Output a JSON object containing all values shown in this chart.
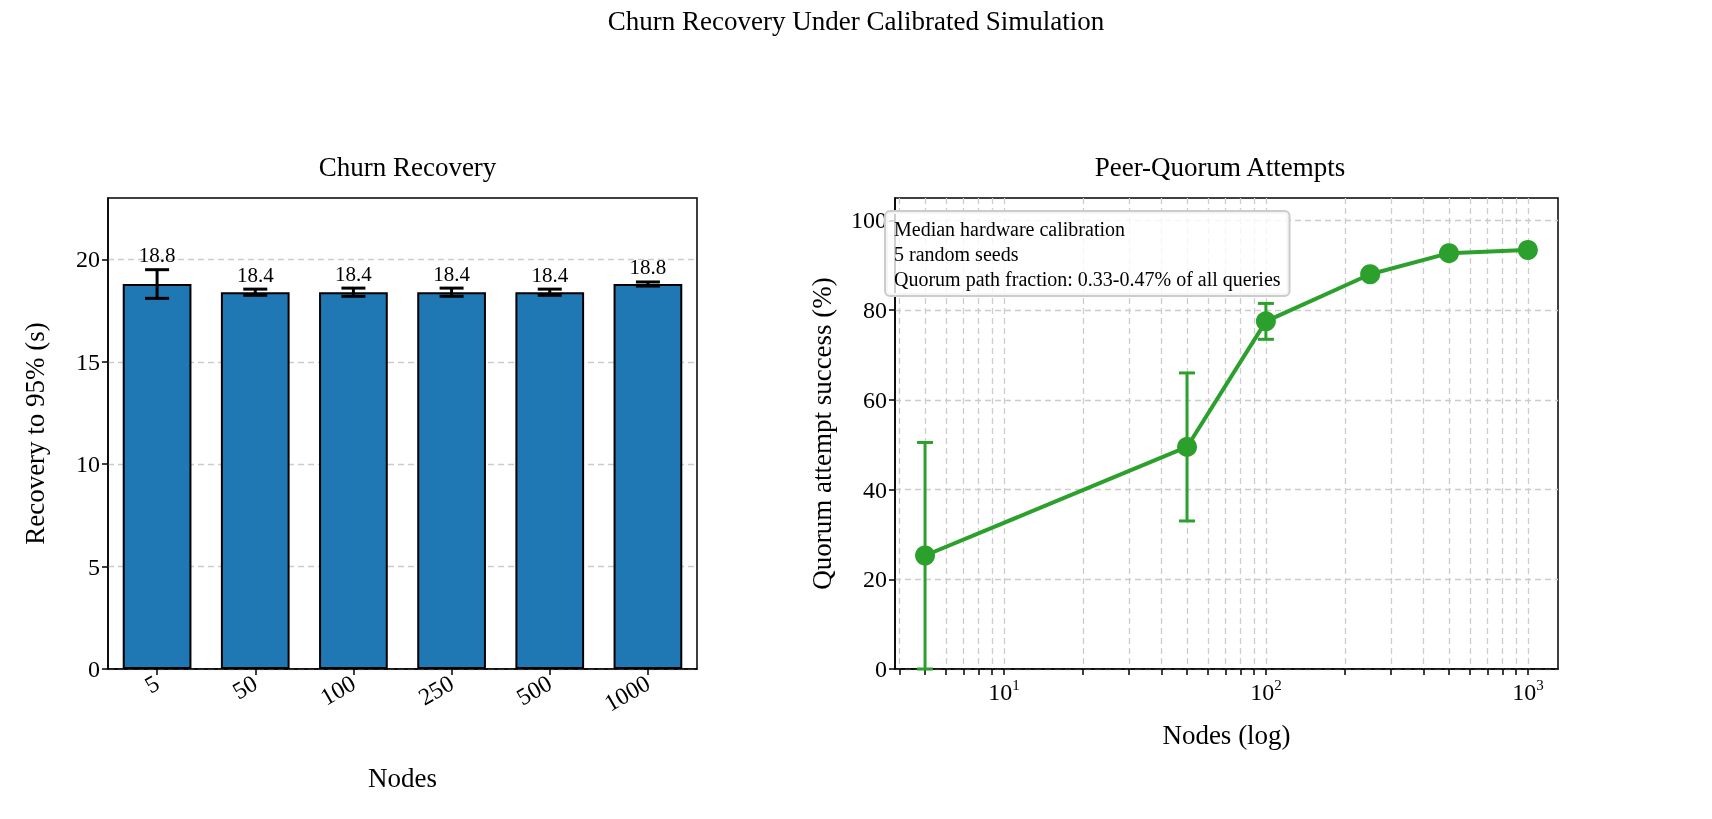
{
  "chart_data": [
    {
      "type": "bar",
      "title": "Churn Recovery",
      "annotations": [
        "Churn Recovery Under Calibrated Simulation"
      ],
      "xlabel": "Nodes",
      "ylabel": "Recovery to 95% (s)",
      "categories": [
        "5",
        "50",
        "100",
        "250",
        "500",
        "1000"
      ],
      "values": [
        18.8,
        18.4,
        18.4,
        18.4,
        18.4,
        18.8
      ],
      "errors": [
        0.7,
        0.15,
        0.2,
        0.2,
        0.15,
        0.1
      ],
      "color": "#1f77b4",
      "data_labels": true,
      "ylim": [
        0,
        23
      ],
      "yticks": [
        0,
        5,
        10,
        15,
        20
      ],
      "grid": "y"
    },
    {
      "type": "line",
      "title": "Peer-Quorum Attempts",
      "xlabel": "Nodes (log)",
      "ylabel": "Quorum attempt success (%)",
      "x": [
        5,
        50,
        100,
        250,
        500,
        1000
      ],
      "values": [
        25.3,
        49.5,
        77.5,
        88,
        92.7,
        93.4
      ],
      "errors": [
        [
          0,
          50.5
        ],
        [
          33,
          66
        ],
        [
          73.5,
          81.5
        ],
        null,
        null,
        null
      ],
      "color": "#2ca02c",
      "marker": "circle",
      "log": "x",
      "xlim": [
        3.84,
        1303
      ],
      "xticks": [
        {
          "value": 4,
          "label": null
        },
        {
          "value": 5,
          "label": null
        },
        {
          "value": 6,
          "label": null
        },
        {
          "value": 7,
          "label": null
        },
        {
          "value": 8,
          "label": null
        },
        {
          "value": 9,
          "label": null
        },
        {
          "value": 10,
          "label": "10$^{1}$"
        },
        {
          "value": 20,
          "label": null
        },
        {
          "value": 30,
          "label": null
        },
        {
          "value": 40,
          "label": null
        },
        {
          "value": 50,
          "label": null
        },
        {
          "value": 60,
          "label": null
        },
        {
          "value": 70,
          "label": null
        },
        {
          "value": 80,
          "label": null
        },
        {
          "value": 90,
          "label": null
        },
        {
          "value": 100,
          "label": "10$^{2}$"
        },
        {
          "value": 200,
          "label": null
        },
        {
          "value": 300,
          "label": null
        },
        {
          "value": 400,
          "label": null
        },
        {
          "value": 500,
          "label": null
        },
        {
          "value": 600,
          "label": null
        },
        {
          "value": 700,
          "label": null
        },
        {
          "value": 800,
          "label": null
        },
        {
          "value": 900,
          "label": null
        },
        {
          "value": 1000,
          "label": "10$^{3}$"
        }
      ],
      "ylim": [
        0,
        105
      ],
      "yticks": [
        0,
        20,
        40,
        60,
        80,
        100
      ],
      "grid": true,
      "annotations": [
        "Median hardware calibration\n5 random seeds\nQuorum path fraction: 0.33-0.47% of all queries"
      ]
    }
  ]
}
